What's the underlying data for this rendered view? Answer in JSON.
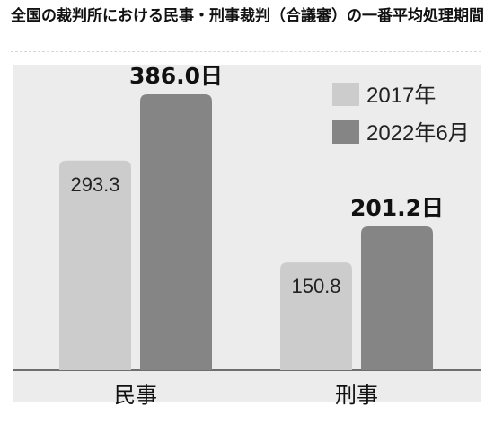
{
  "title": "全国の裁判所における民事・刑事裁判（合議審）の一番平均処理期間",
  "chart_data": {
    "type": "bar",
    "categories": [
      "民事",
      "刑事"
    ],
    "series": [
      {
        "name": "2017年",
        "values": [
          293.3,
          150.8
        ],
        "labels": [
          "293.3",
          "150.8"
        ],
        "color": "#cccccc"
      },
      {
        "name": "2022年6月",
        "values": [
          386.0,
          201.2
        ],
        "labels": [
          "386.0日",
          "201.2日"
        ],
        "color": "#858585"
      }
    ],
    "ylim": [
      0,
      420
    ],
    "grid": false,
    "legend": "top-right"
  }
}
